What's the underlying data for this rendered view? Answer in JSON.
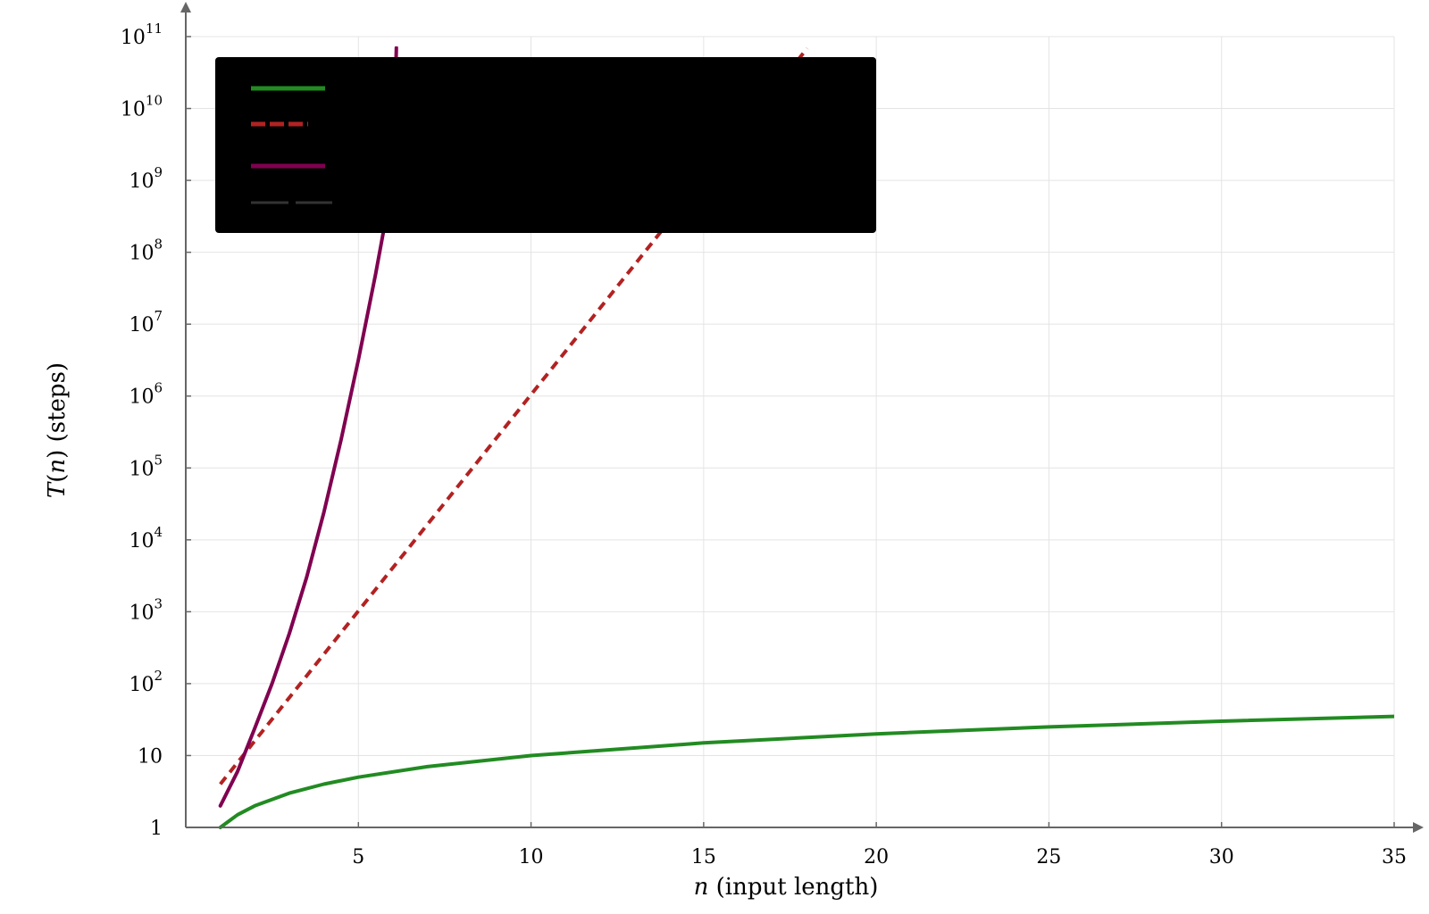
{
  "chart_data": {
    "type": "line",
    "title": "",
    "xlabel": "n (input length)",
    "xlabel_parts": {
      "var": "n",
      "rest": " (input length)"
    },
    "ylabel": "T(n) (steps)",
    "ylabel_parts": {
      "fn": "T",
      "var": "n",
      "rest": " (steps)"
    },
    "xlim": [
      0,
      35
    ],
    "ylim_exp": [
      0,
      11
    ],
    "yscale": "log",
    "grid": true,
    "legend": {
      "placement": "top-left",
      "background": "#000000",
      "labels_visible": false
    },
    "xticks": [
      {
        "value": 5,
        "label": "5"
      },
      {
        "value": 10,
        "label": "10"
      },
      {
        "value": 15,
        "label": "15"
      },
      {
        "value": 20,
        "label": "20"
      },
      {
        "value": 25,
        "label": "25"
      },
      {
        "value": 30,
        "label": "30"
      },
      {
        "value": 35,
        "label": "35"
      }
    ],
    "yticks": [
      {
        "exp": 0,
        "base": "1",
        "sup": ""
      },
      {
        "exp": 1,
        "base": "10",
        "sup": ""
      },
      {
        "exp": 2,
        "base": "10",
        "sup": "2"
      },
      {
        "exp": 3,
        "base": "10",
        "sup": "3"
      },
      {
        "exp": 4,
        "base": "10",
        "sup": "4"
      },
      {
        "exp": 5,
        "base": "10",
        "sup": "5"
      },
      {
        "exp": 6,
        "base": "10",
        "sup": "6"
      },
      {
        "exp": 7,
        "base": "10",
        "sup": "7"
      },
      {
        "exp": 8,
        "base": "10",
        "sup": "8"
      },
      {
        "exp": 9,
        "base": "10",
        "sup": "9"
      },
      {
        "exp": 10,
        "base": "10",
        "sup": "10"
      },
      {
        "exp": 11,
        "base": "10",
        "sup": "11"
      }
    ],
    "series": [
      {
        "color": "#228b22",
        "dash": "solid",
        "points": [
          [
            1,
            1
          ],
          [
            1.5,
            1.5
          ],
          [
            2,
            2
          ],
          [
            3,
            3
          ],
          [
            4,
            4
          ],
          [
            5,
            5
          ],
          [
            7,
            7
          ],
          [
            10,
            10
          ],
          [
            15,
            15
          ],
          [
            20,
            20
          ],
          [
            25,
            25
          ],
          [
            30,
            30
          ],
          [
            35,
            35
          ]
        ]
      },
      {
        "color": "#b22222",
        "dash": "dashed",
        "points": [
          [
            1,
            4
          ],
          [
            2,
            16
          ],
          [
            3,
            64
          ],
          [
            4,
            256
          ],
          [
            5,
            1024
          ],
          [
            6,
            4096
          ],
          [
            8,
            65536
          ],
          [
            10,
            1048576
          ],
          [
            12,
            16777216
          ],
          [
            14,
            268435456
          ],
          [
            16,
            4294967296
          ],
          [
            18,
            68719476736
          ]
        ]
      },
      {
        "color": "#800050",
        "dash": "solid",
        "points": [
          [
            1,
            2
          ],
          [
            1.5,
            6
          ],
          [
            2,
            24
          ],
          [
            2.5,
            100
          ],
          [
            3,
            500
          ],
          [
            3.5,
            3000
          ],
          [
            4,
            24000
          ],
          [
            4.5,
            250000
          ],
          [
            5,
            3200000
          ],
          [
            5.5,
            50000000
          ],
          [
            6,
            1000000000
          ],
          [
            6.1,
            70000000000
          ]
        ]
      },
      {
        "color": "#333333",
        "dash": "dashed",
        "points": []
      }
    ]
  }
}
